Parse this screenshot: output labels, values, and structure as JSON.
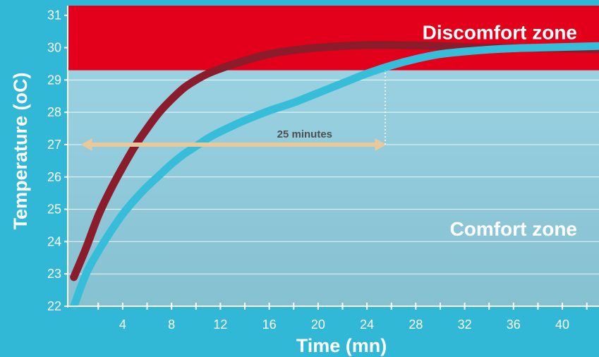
{
  "colors": {
    "background": "#31b8d6",
    "plot_top": "#9fd6e6",
    "plot_bottom": "#86c1d1",
    "discomfort": "#e2001a",
    "curve_dark": "#8a1c2b",
    "curve_light": "#36bdd9",
    "arrow": "#e9c99a",
    "arrow_text": "#4f4f4f",
    "axis_text": "#ffffff"
  },
  "chart_data": {
    "type": "line",
    "xlabel": "Time (mn)",
    "ylabel": "Temperature (oC)",
    "xlim": [
      -0.5,
      43
    ],
    "ylim": [
      22,
      31.3
    ],
    "x_ticks": [
      4,
      8,
      12,
      16,
      20,
      24,
      28,
      32,
      36,
      40
    ],
    "x_tick_labels": [
      "4",
      "8",
      "12",
      "16",
      "20",
      "24",
      "28",
      "32",
      "36",
      "40"
    ],
    "y_ticks": [
      22,
      23,
      24,
      25,
      26,
      27,
      28,
      29,
      30,
      31
    ],
    "y_tick_labels": [
      "22",
      "23",
      "24",
      "25",
      "26",
      "27",
      "28",
      "29",
      "30",
      "31"
    ],
    "grid": "horizontal",
    "zones": [
      {
        "label": "Discomfort zone",
        "y_from": 29.3,
        "y_to": 31.3,
        "color": "#e2001a"
      },
      {
        "label": "Comfort zone",
        "y_from": 22,
        "y_to": 29.3
      }
    ],
    "series": [
      {
        "color": "#8a1c2b",
        "x": [
          0,
          1,
          2,
          3,
          4,
          5,
          6,
          7,
          8,
          9,
          10,
          11,
          12,
          14,
          16,
          18,
          20,
          22,
          24,
          26,
          28,
          30,
          32,
          34,
          36,
          38,
          40,
          43
        ],
        "y": [
          22.9,
          23.8,
          24.8,
          25.6,
          26.3,
          26.95,
          27.5,
          28.0,
          28.4,
          28.75,
          29.0,
          29.2,
          29.35,
          29.6,
          29.8,
          29.92,
          30.0,
          30.05,
          30.08,
          30.08,
          30.07,
          30.05,
          30.02,
          30.0,
          30.0,
          29.98,
          29.97,
          29.95
        ]
      },
      {
        "color": "#36bdd9",
        "x": [
          0,
          1,
          2,
          3,
          4,
          5,
          6,
          7,
          8,
          9,
          10,
          11,
          12,
          14,
          16,
          18,
          20,
          22,
          24,
          26,
          28,
          30,
          32,
          34,
          36,
          38,
          40,
          43
        ],
        "y": [
          22.0,
          23.0,
          23.7,
          24.3,
          24.85,
          25.3,
          25.7,
          26.05,
          26.4,
          26.7,
          26.95,
          27.2,
          27.4,
          27.75,
          28.05,
          28.3,
          28.6,
          28.9,
          29.2,
          29.45,
          29.65,
          29.8,
          29.88,
          29.94,
          29.98,
          30.0,
          30.02,
          30.05
        ]
      }
    ],
    "annotations": [
      {
        "text": "25 minutes",
        "type": "double-arrow",
        "x_from": 0,
        "x_to": 25,
        "y": 27
      },
      {
        "type": "dotted-vertical",
        "x": 25.5,
        "y_from": 27,
        "y_to": 29.3
      }
    ]
  }
}
